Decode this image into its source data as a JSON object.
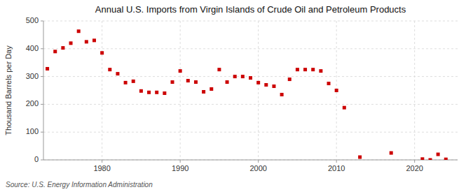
{
  "chart_data": {
    "type": "scatter",
    "title": "Annual U.S. Imports from Virgin Islands of Crude Oil and Petroleum Products",
    "ylabel": "Thousand Barrels per Day",
    "source": "Source: U.S. Energy Information Administration",
    "color": "#cc0000",
    "marker": "square",
    "grid": true,
    "xlim": [
      1972.5,
      2025.5
    ],
    "xticks": [
      1980,
      1990,
      2000,
      2010,
      2020
    ],
    "ylim": [
      0,
      500
    ],
    "yticks": [
      0,
      100,
      200,
      300,
      400,
      500
    ],
    "x": [
      1973,
      1974,
      1975,
      1976,
      1977,
      1978,
      1979,
      1980,
      1981,
      1982,
      1983,
      1984,
      1985,
      1986,
      1987,
      1988,
      1989,
      1990,
      1991,
      1992,
      1993,
      1994,
      1995,
      1996,
      1997,
      1998,
      1999,
      2000,
      2001,
      2002,
      2003,
      2004,
      2005,
      2006,
      2007,
      2008,
      2009,
      2010,
      2011,
      2013,
      2017,
      2021,
      2022,
      2023,
      2024
    ],
    "values": [
      328,
      390,
      403,
      420,
      463,
      425,
      430,
      385,
      325,
      310,
      278,
      283,
      248,
      243,
      243,
      240,
      280,
      320,
      285,
      280,
      245,
      255,
      325,
      280,
      300,
      300,
      295,
      278,
      270,
      265,
      235,
      290,
      325,
      325,
      325,
      320,
      275,
      250,
      188,
      10,
      25,
      3,
      0,
      20,
      2
    ]
  }
}
